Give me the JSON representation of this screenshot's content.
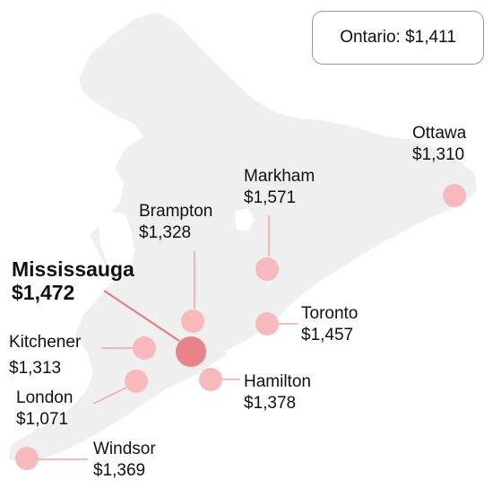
{
  "summary": {
    "province": "Ontario",
    "value": "$1,411",
    "text": "Ontario: $1,411"
  },
  "colors": {
    "land": "#efefef",
    "marker": "#f7b9bc",
    "marker_highlight": "#ea8387",
    "leader": "#f4a3a7",
    "leader_highlight": "#e07a7e"
  },
  "cities": [
    {
      "id": "ottawa",
      "name": "Ottawa",
      "value": "$1,310",
      "highlight": false
    },
    {
      "id": "markham",
      "name": "Markham",
      "value": "$1,571",
      "highlight": false
    },
    {
      "id": "brampton",
      "name": "Brampton",
      "value": "$1,328",
      "highlight": false
    },
    {
      "id": "mississauga",
      "name": "Mississauga",
      "value": "$1,472",
      "highlight": true
    },
    {
      "id": "toronto",
      "name": "Toronto",
      "value": "$1,457",
      "highlight": false
    },
    {
      "id": "kitchener",
      "name": "Kitchener",
      "value": "$1,313",
      "highlight": false
    },
    {
      "id": "hamilton",
      "name": "Hamilton",
      "value": "$1,378",
      "highlight": false
    },
    {
      "id": "london",
      "name": "London",
      "value": "$1,071",
      "highlight": false
    },
    {
      "id": "windsor",
      "name": "Windsor",
      "value": "$1,369",
      "highlight": false
    }
  ]
}
